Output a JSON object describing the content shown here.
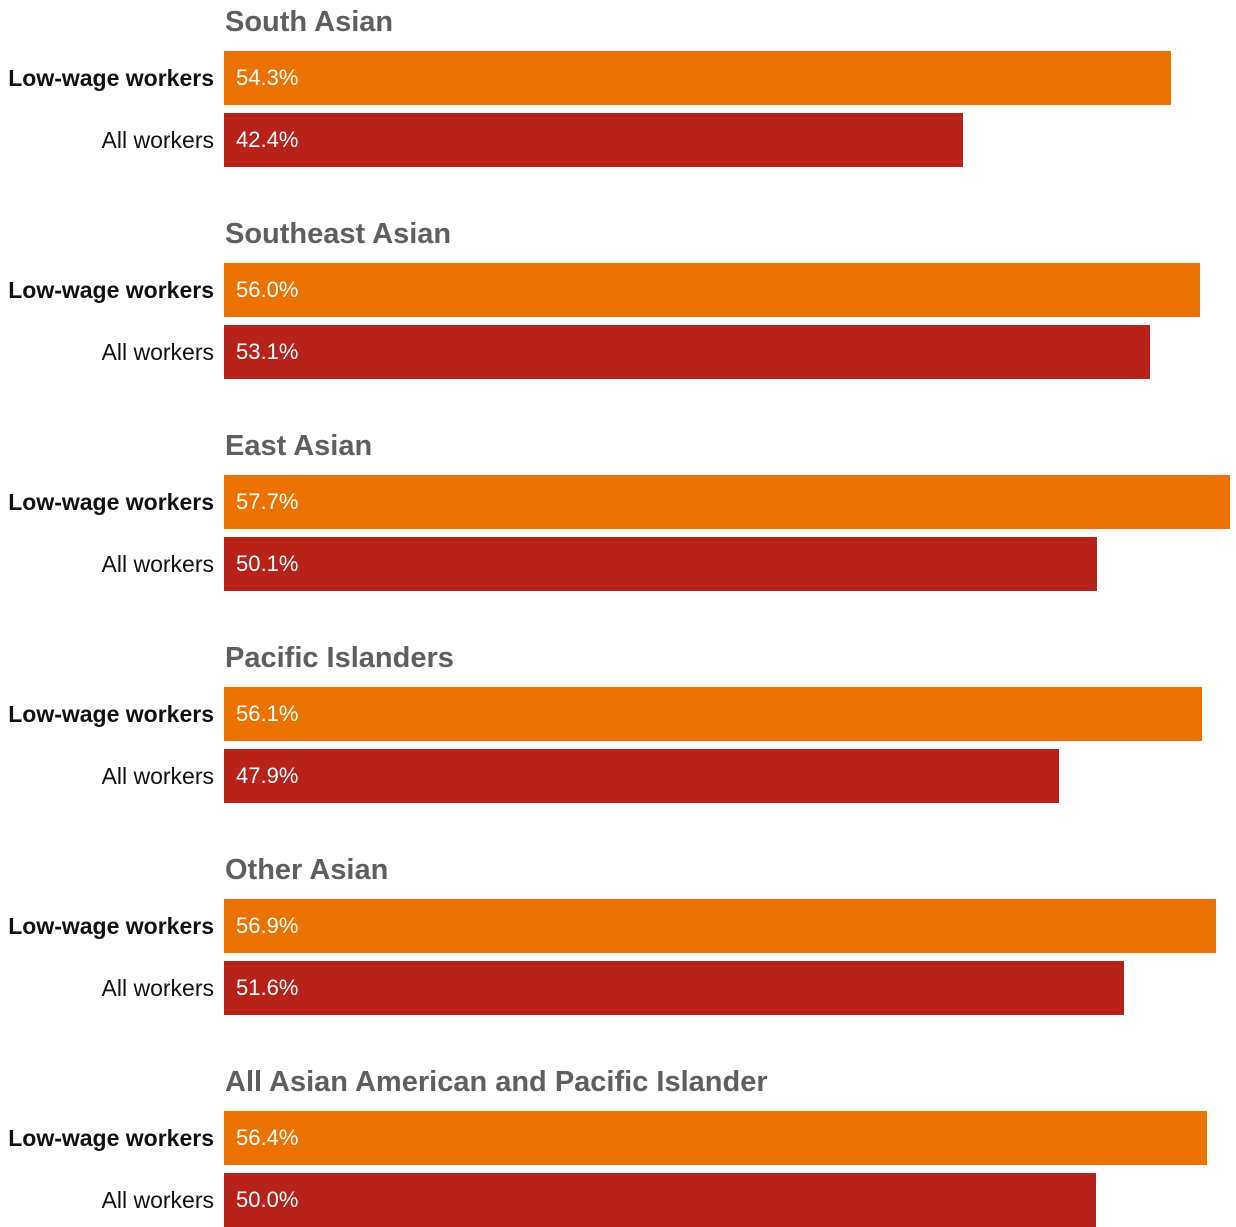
{
  "chart_data": {
    "type": "bar",
    "orientation": "horizontal",
    "series_colors": {
      "Low-wage workers": "#ec7200",
      "All workers": "#b7221a"
    },
    "groups": [
      {
        "title": "South Asian",
        "rows": [
          {
            "label": "Low-wage workers",
            "value": 54.3,
            "value_label": "54.3%"
          },
          {
            "label": "All workers",
            "value": 42.4,
            "value_label": "42.4%"
          }
        ]
      },
      {
        "title": "Southeast Asian",
        "rows": [
          {
            "label": "Low-wage workers",
            "value": 56.0,
            "value_label": "56.0%"
          },
          {
            "label": "All workers",
            "value": 53.1,
            "value_label": "53.1%"
          }
        ]
      },
      {
        "title": "East Asian",
        "rows": [
          {
            "label": "Low-wage workers",
            "value": 57.7,
            "value_label": "57.7%"
          },
          {
            "label": "All workers",
            "value": 50.1,
            "value_label": "50.1%"
          }
        ]
      },
      {
        "title": "Pacific Islanders",
        "rows": [
          {
            "label": "Low-wage workers",
            "value": 56.1,
            "value_label": "56.1%"
          },
          {
            "label": "All workers",
            "value": 47.9,
            "value_label": "47.9%"
          }
        ]
      },
      {
        "title": "Other Asian",
        "rows": [
          {
            "label": "Low-wage workers",
            "value": 56.9,
            "value_label": "56.9%"
          },
          {
            "label": "All workers",
            "value": 51.6,
            "value_label": "51.6%"
          }
        ]
      },
      {
        "title": "All Asian American and Pacific Islander",
        "rows": [
          {
            "label": "Low-wage workers",
            "value": 56.4,
            "value_label": "56.4%"
          },
          {
            "label": "All workers",
            "value": 50.0,
            "value_label": "50.0%"
          }
        ]
      }
    ],
    "xlim": [
      0,
      57.7
    ],
    "grid": false,
    "legend": "none"
  }
}
